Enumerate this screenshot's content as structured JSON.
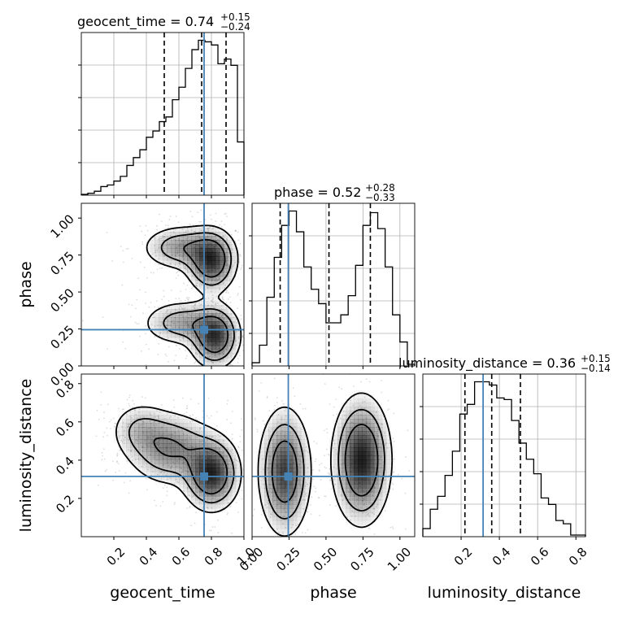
{
  "colors": {
    "truth": "#4682b4",
    "hist_line": "#000000",
    "grid": "#b0b0b0",
    "sample_points": "#9a9a9a",
    "density": "#000000"
  },
  "chart_data": {
    "type": "corner",
    "parameters": [
      {
        "name": "geocent_time",
        "title_value": "0.74",
        "title_plus": "+0.15",
        "title_minus": "−0.24",
        "truth": 0.755,
        "quantiles": [
          0.51,
          0.74,
          0.89
        ],
        "range": [
          0.0,
          1.0
        ],
        "ticks": [
          0.2,
          0.4,
          0.6,
          0.8,
          1.0
        ],
        "tick_labels": [
          "0.2",
          "0.4",
          "0.6",
          "0.8",
          "1.0"
        ],
        "hist_counts": [
          0.5,
          1.2,
          2.5,
          5.5,
          6.5,
          9,
          12,
          19,
          24,
          29,
          37,
          41,
          47,
          50,
          61,
          69,
          81,
          93,
          99,
          98,
          96,
          84,
          87,
          83,
          34
        ]
      },
      {
        "name": "phase",
        "title_value": "0.52",
        "title_plus": "+0.28",
        "title_minus": "−0.33",
        "truth": 0.245,
        "quantiles": [
          0.19,
          0.52,
          0.8
        ],
        "range": [
          0.0,
          1.1
        ],
        "ticks": [
          0.0,
          0.25,
          0.5,
          0.75,
          1.0
        ],
        "tick_labels": [
          "0.00",
          "0.25",
          "0.50",
          "0.75",
          "1.00"
        ],
        "hist_counts": [
          2,
          13,
          43,
          68,
          88,
          97,
          84,
          62,
          48,
          39,
          27,
          27,
          32,
          44,
          63,
          88,
          96,
          86,
          62,
          32,
          15,
          1
        ]
      },
      {
        "name": "luminosity_distance",
        "title_value": "0.36",
        "title_plus": "+0.15",
        "title_minus": "−0.14",
        "truth": 0.315,
        "quantiles": [
          0.22,
          0.36,
          0.51
        ],
        "range": [
          0.0,
          0.85
        ],
        "ticks": [
          0.2,
          0.4,
          0.6,
          0.8
        ],
        "tick_labels": [
          "0.2",
          "0.4",
          "0.6",
          "0.8"
        ],
        "hist_counts": [
          5,
          17,
          25,
          38,
          53,
          76,
          82,
          96,
          96,
          94,
          86,
          85,
          72,
          58,
          48,
          39,
          24,
          20,
          10,
          8,
          1,
          1
        ]
      }
    ],
    "pairs": [
      {
        "x_param": "geocent_time",
        "y_param": "phase",
        "density": [
          {
            "x": 0.8,
            "y": 0.71,
            "amp": 1.0,
            "sx": 0.08,
            "sy": 0.11
          },
          {
            "x": 0.62,
            "y": 0.8,
            "amp": 0.55,
            "sx": 0.13,
            "sy": 0.08
          },
          {
            "x": 0.82,
            "y": 0.2,
            "amp": 1.0,
            "sx": 0.08,
            "sy": 0.11
          },
          {
            "x": 0.62,
            "y": 0.29,
            "amp": 0.5,
            "sx": 0.13,
            "sy": 0.08
          }
        ],
        "contour_levels": [
          0.12,
          0.3,
          0.55
        ]
      },
      {
        "x_param": "geocent_time",
        "y_param": "luminosity_distance",
        "density": [
          {
            "x": 0.8,
            "y": 0.33,
            "amp": 1.0,
            "sx": 0.09,
            "sy": 0.1
          },
          {
            "x": 0.55,
            "y": 0.46,
            "amp": 0.6,
            "sx": 0.14,
            "sy": 0.1
          },
          {
            "x": 0.36,
            "y": 0.56,
            "amp": 0.3,
            "sx": 0.1,
            "sy": 0.08
          }
        ],
        "contour_levels": [
          0.12,
          0.3,
          0.55
        ]
      },
      {
        "x_param": "phase",
        "y_param": "luminosity_distance",
        "density": [
          {
            "x": 0.22,
            "y": 0.34,
            "amp": 0.85,
            "sx": 0.09,
            "sy": 0.17
          },
          {
            "x": 0.74,
            "y": 0.4,
            "amp": 1.0,
            "sx": 0.1,
            "sy": 0.17
          }
        ],
        "contour_levels": [
          0.12,
          0.3,
          0.55
        ]
      }
    ]
  }
}
